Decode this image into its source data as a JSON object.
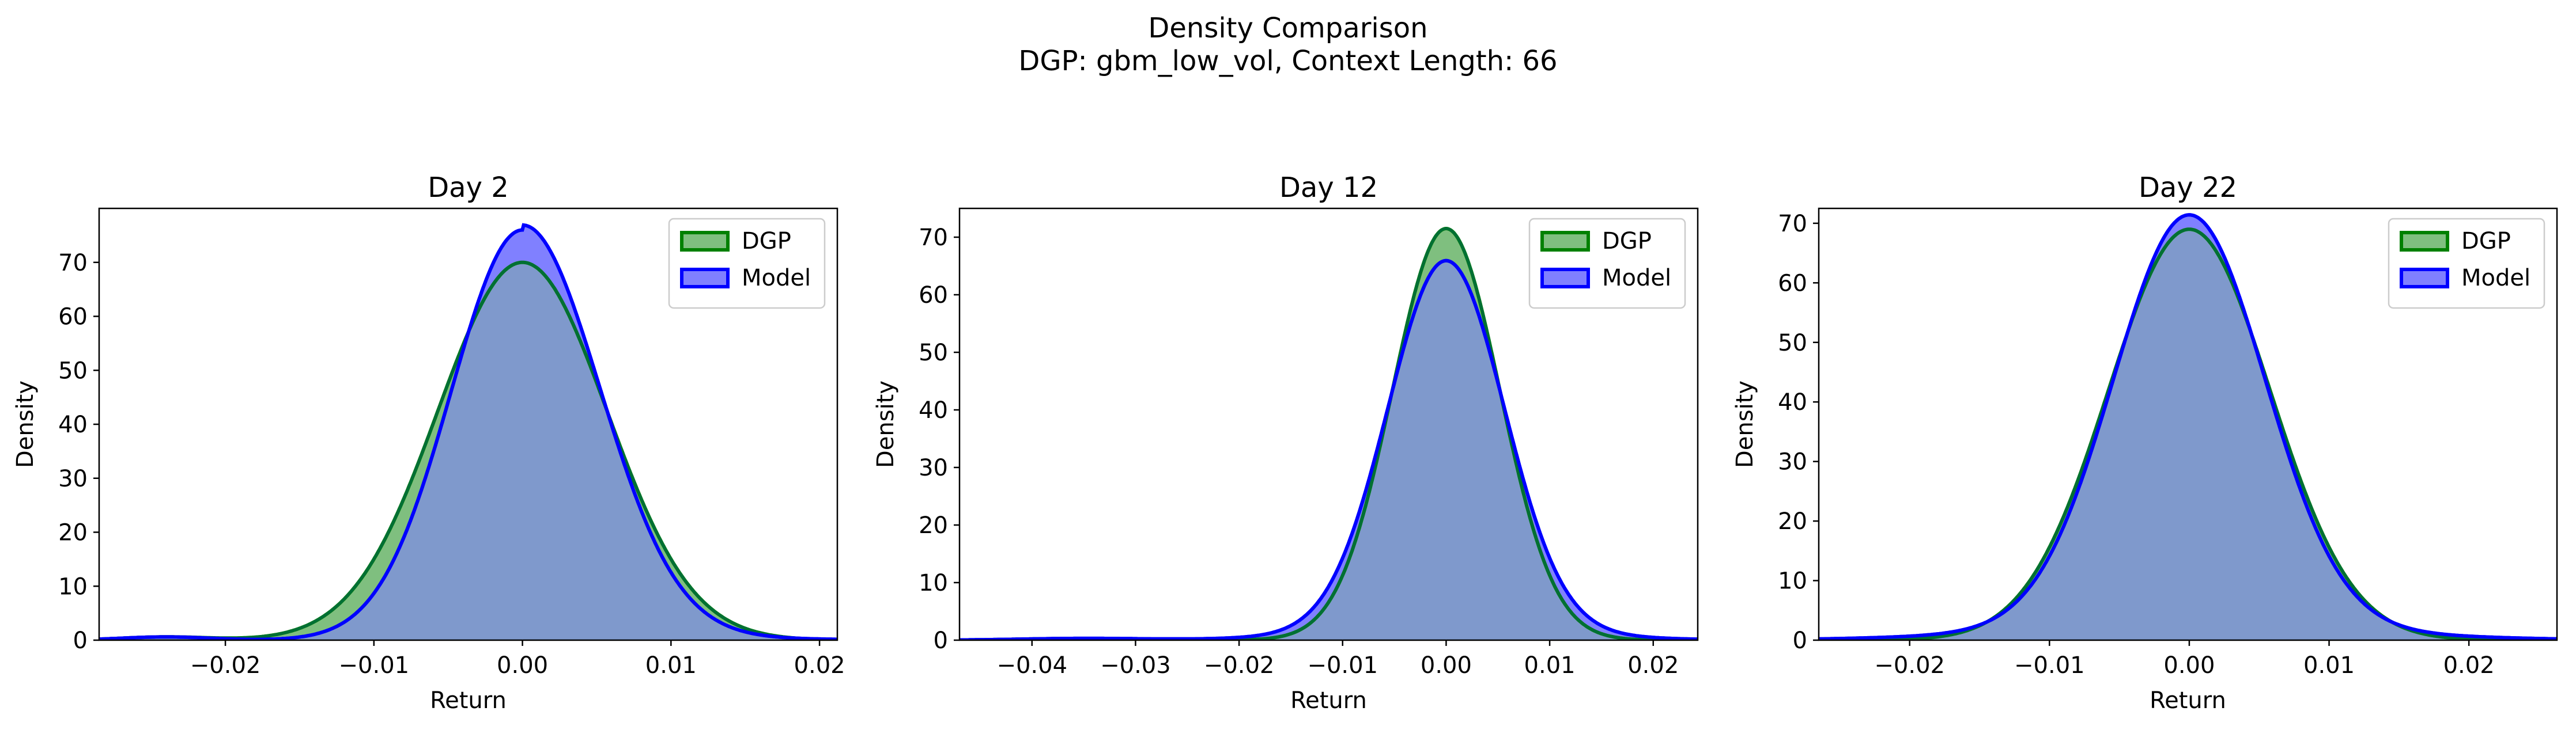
{
  "figure": {
    "title_line1": "Density Comparison",
    "title_line2": "DGP: gbm_low_vol, Context Length: 66"
  },
  "colors": {
    "dgp_line": "#008000",
    "dgp_fill": "#7fbf7f",
    "model_line": "#0000ff",
    "model_fill": "#8080ff",
    "overlap_fill": "#7f99cc",
    "overlap_line": "#006060"
  },
  "chart_data": [
    {
      "type": "area",
      "title": "Day 2",
      "xlabel": "Return",
      "ylabel": "Density",
      "xlim": [
        -0.0285,
        0.0212
      ],
      "ylim": [
        0,
        80
      ],
      "xticks": [
        -0.02,
        -0.01,
        0.0,
        0.01,
        0.02
      ],
      "xtick_labels": [
        "−0.02",
        "−0.01",
        "0.00",
        "0.01",
        "0.02"
      ],
      "yticks": [
        0,
        10,
        20,
        30,
        40,
        50,
        60,
        70
      ],
      "legend": "top-right",
      "grid": false,
      "series": [
        {
          "name": "DGP",
          "color": "#008000",
          "peak": 70,
          "mean": 0.0,
          "sigma_left": 0.0057,
          "sigma_right": 0.0057,
          "tail_weight": 0.0,
          "tail_sigma": 0.0,
          "tail_side": "none",
          "bump": [
            -0.024,
            0.6,
            0.003
          ]
        },
        {
          "name": "Model",
          "color": "#0000ff",
          "peak": 76,
          "mean": 0.0,
          "sigma_left": 0.0048,
          "sigma_right": 0.0052,
          "tail_weight": 0.012,
          "tail_sigma": 0.011,
          "tail_side": "right",
          "bump": [
            -0.024,
            0.6,
            0.003
          ]
        }
      ]
    },
    {
      "type": "area",
      "title": "Day 12",
      "xlabel": "Return",
      "ylabel": "Density",
      "xlim": [
        -0.047,
        0.0243
      ],
      "ylim": [
        0,
        75
      ],
      "xticks": [
        -0.04,
        -0.03,
        -0.02,
        -0.01,
        0.0,
        0.01,
        0.02
      ],
      "xtick_labels": [
        "−0.04",
        "−0.03",
        "−0.02",
        "−0.01",
        "0.00",
        "0.01",
        "0.02"
      ],
      "yticks": [
        0,
        10,
        20,
        30,
        40,
        50,
        60,
        70
      ],
      "legend": "top-right",
      "grid": false,
      "series": [
        {
          "name": "DGP",
          "color": "#008000",
          "peak": 71.5,
          "mean": 0.0,
          "sigma_left": 0.0052,
          "sigma_right": 0.0052,
          "tail_weight": 0.0,
          "tail_sigma": 0.0,
          "tail_side": "none",
          "bump": [
            -0.035,
            0.3,
            0.006
          ]
        },
        {
          "name": "Model",
          "color": "#0000ff",
          "peak": 64,
          "mean": 0.0,
          "sigma_left": 0.0056,
          "sigma_right": 0.0056,
          "tail_weight": 0.03,
          "tail_sigma": 0.011,
          "tail_side": "both",
          "bump": [
            -0.035,
            0.3,
            0.006
          ]
        }
      ]
    },
    {
      "type": "area",
      "title": "Day 22",
      "xlabel": "Return",
      "ylabel": "Density",
      "xlim": [
        -0.0265,
        0.0263
      ],
      "ylim": [
        0,
        72.5
      ],
      "xticks": [
        -0.02,
        -0.01,
        0.0,
        0.01,
        0.02
      ],
      "xtick_labels": [
        "−0.02",
        "−0.01",
        "0.00",
        "0.01",
        "0.02"
      ],
      "yticks": [
        0,
        10,
        20,
        30,
        40,
        50,
        60,
        70
      ],
      "legend": "top-right",
      "grid": false,
      "series": [
        {
          "name": "DGP",
          "color": "#008000",
          "peak": 69,
          "mean": 0.0,
          "sigma_left": 0.0058,
          "sigma_right": 0.0058,
          "tail_weight": 0.0,
          "tail_sigma": 0.0,
          "tail_side": "none",
          "bump": [
            0,
            0,
            1
          ]
        },
        {
          "name": "Model",
          "color": "#0000ff",
          "peak": 69,
          "mean": 0.0,
          "sigma_left": 0.0054,
          "sigma_right": 0.0054,
          "tail_weight": 0.035,
          "tail_sigma": 0.012,
          "tail_side": "both",
          "bump": [
            0,
            0,
            1
          ]
        }
      ]
    }
  ]
}
